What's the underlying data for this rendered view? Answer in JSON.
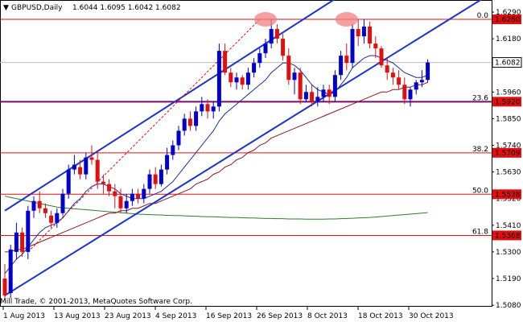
{
  "window": {
    "symbol_label": "GBPUSD,Daily",
    "ohlc_label": "1.6044 1.6095 1.6042 1.6082",
    "copyright": "Mill Trade, © 2001-2013, MetaQuotes Software Corp."
  },
  "chart_data": {
    "type": "candlestick",
    "title": "GBPUSD,Daily",
    "ylim": [
      1.5087,
      1.629
    ],
    "y_ticks": [
      1.629,
      1.618,
      1.607,
      1.596,
      1.585,
      1.574,
      1.563,
      1.552,
      1.541,
      1.53,
      1.519,
      1.508
    ],
    "x_ticks": [
      "1 Aug 2013",
      "13 Aug 2013",
      "23 Aug 2013",
      "4 Sep 2013",
      "16 Sep 2013",
      "26 Sep 2013",
      "8 Oct 2013",
      "18 Oct 2013",
      "30 Oct 2013"
    ],
    "current_price": "1.6082",
    "bull_color": "#0000cc",
    "bear_color": "#e01010",
    "candles": [
      [
        1.519,
        1.525,
        1.51,
        1.512
      ],
      [
        1.513,
        1.533,
        1.511,
        1.531
      ],
      [
        1.53,
        1.542,
        1.527,
        1.538
      ],
      [
        1.538,
        1.54,
        1.528,
        1.53
      ],
      [
        1.53,
        1.549,
        1.527,
        1.547
      ],
      [
        1.547,
        1.553,
        1.544,
        1.551
      ],
      [
        1.551,
        1.555,
        1.546,
        1.548
      ],
      [
        1.548,
        1.55,
        1.544,
        1.546
      ],
      [
        1.545,
        1.547,
        1.54,
        1.542
      ],
      [
        1.542,
        1.548,
        1.54,
        1.546
      ],
      [
        1.546,
        1.556,
        1.545,
        1.554
      ],
      [
        1.554,
        1.566,
        1.552,
        1.564
      ],
      [
        1.564,
        1.57,
        1.562,
        1.566
      ],
      [
        1.565,
        1.568,
        1.56,
        1.562
      ],
      [
        1.562,
        1.571,
        1.56,
        1.569
      ],
      [
        1.569,
        1.574,
        1.566,
        1.568
      ],
      [
        1.568,
        1.572,
        1.556,
        1.559
      ],
      [
        1.559,
        1.562,
        1.554,
        1.558
      ],
      [
        1.558,
        1.56,
        1.553,
        1.555
      ],
      [
        1.555,
        1.558,
        1.548,
        1.553
      ],
      [
        1.553,
        1.556,
        1.546,
        1.548
      ],
      [
        1.548,
        1.554,
        1.546,
        1.551
      ],
      [
        1.551,
        1.556,
        1.549,
        1.554
      ],
      [
        1.554,
        1.556,
        1.55,
        1.552
      ],
      [
        1.552,
        1.558,
        1.55,
        1.556
      ],
      [
        1.556,
        1.564,
        1.554,
        1.562
      ],
      [
        1.562,
        1.565,
        1.556,
        1.558
      ],
      [
        1.558,
        1.566,
        1.557,
        1.564
      ],
      [
        1.564,
        1.573,
        1.562,
        1.57
      ],
      [
        1.57,
        1.576,
        1.568,
        1.574
      ],
      [
        1.574,
        1.582,
        1.572,
        1.58
      ],
      [
        1.58,
        1.587,
        1.578,
        1.585
      ],
      [
        1.585,
        1.588,
        1.58,
        1.582
      ],
      [
        1.582,
        1.59,
        1.58,
        1.588
      ],
      [
        1.588,
        1.594,
        1.586,
        1.591
      ],
      [
        1.591,
        1.593,
        1.585,
        1.588
      ],
      [
        1.588,
        1.592,
        1.585,
        1.59
      ],
      [
        1.59,
        1.616,
        1.588,
        1.613
      ],
      [
        1.613,
        1.616,
        1.603,
        1.604
      ],
      [
        1.604,
        1.606,
        1.598,
        1.6
      ],
      [
        1.6,
        1.604,
        1.597,
        1.602
      ],
      [
        1.602,
        1.603,
        1.597,
        1.599
      ],
      [
        1.599,
        1.606,
        1.597,
        1.604
      ],
      [
        1.604,
        1.61,
        1.602,
        1.608
      ],
      [
        1.608,
        1.614,
        1.606,
        1.612
      ],
      [
        1.612,
        1.618,
        1.61,
        1.616
      ],
      [
        1.616,
        1.626,
        1.614,
        1.622
      ],
      [
        1.622,
        1.624,
        1.616,
        1.618
      ],
      [
        1.618,
        1.62,
        1.609,
        1.611
      ],
      [
        1.611,
        1.614,
        1.599,
        1.601
      ],
      [
        1.601,
        1.606,
        1.595,
        1.604
      ],
      [
        1.604,
        1.606,
        1.591,
        1.593
      ],
      [
        1.593,
        1.599,
        1.592,
        1.596
      ],
      [
        1.596,
        1.599,
        1.59,
        1.592
      ],
      [
        1.592,
        1.598,
        1.59,
        1.594
      ],
      [
        1.594,
        1.599,
        1.592,
        1.597
      ],
      [
        1.597,
        1.599,
        1.591,
        1.594
      ],
      [
        1.594,
        1.605,
        1.592,
        1.603
      ],
      [
        1.603,
        1.613,
        1.601,
        1.611
      ],
      [
        1.611,
        1.616,
        1.605,
        1.608
      ],
      [
        1.608,
        1.624,
        1.606,
        1.622
      ],
      [
        1.622,
        1.626,
        1.615,
        1.619
      ],
      [
        1.619,
        1.626,
        1.616,
        1.623
      ],
      [
        1.623,
        1.625,
        1.614,
        1.616
      ],
      [
        1.616,
        1.619,
        1.61,
        1.614
      ],
      [
        1.614,
        1.615,
        1.606,
        1.607
      ],
      [
        1.607,
        1.61,
        1.601,
        1.604
      ],
      [
        1.604,
        1.606,
        1.599,
        1.602
      ],
      [
        1.602,
        1.605,
        1.597,
        1.599
      ],
      [
        1.599,
        1.602,
        1.591,
        1.593
      ],
      [
        1.593,
        1.598,
        1.59,
        1.597
      ],
      [
        1.597,
        1.601,
        1.595,
        1.6
      ],
      [
        1.6,
        1.605,
        1.598,
        1.601
      ],
      [
        1.601,
        1.6095,
        1.6,
        1.6082
      ]
    ],
    "channel_upper": {
      "x_index": [
        0,
        60
      ],
      "y": [
        1.547,
        1.639
      ]
    },
    "channel_lower": {
      "x_index": [
        0,
        70
      ],
      "y": [
        1.512,
        1.616
      ]
    },
    "dashed_line": {
      "x_index": [
        4,
        44
      ],
      "y": [
        1.53,
        1.626
      ]
    },
    "horizontal_line_1": {
      "value": 1.6082
    },
    "fib_levels": [
      {
        "label": "0.0",
        "value": 1.626,
        "price": "1.6260"
      },
      {
        "label": "23.6",
        "value": 1.592,
        "price": "1.5920"
      },
      {
        "label": "38.2",
        "value": 1.5709,
        "price": "1.5709"
      },
      {
        "label": "50.0",
        "value": 1.5538,
        "price": "1.5538"
      },
      {
        "label": "61.8",
        "value": 1.5368,
        "price": "1.5368"
      }
    ],
    "ma_fast": [
      1.521,
      1.524,
      1.527,
      1.529,
      1.532,
      1.535,
      1.538,
      1.54,
      1.541,
      1.542,
      1.544,
      1.547,
      1.55,
      1.552,
      1.555,
      1.557,
      1.558,
      1.558,
      1.557,
      1.556,
      1.554,
      1.553,
      1.552,
      1.552,
      1.552,
      1.553,
      1.554,
      1.555,
      1.557,
      1.559,
      1.562,
      1.565,
      1.568,
      1.571,
      1.574,
      1.577,
      1.58,
      1.584,
      1.587,
      1.589,
      1.591,
      1.593,
      1.595,
      1.597,
      1.599,
      1.601,
      1.604,
      1.606,
      1.608,
      1.608,
      1.607,
      1.605,
      1.602,
      1.599,
      1.597,
      1.596,
      1.595,
      1.596,
      1.599,
      1.602,
      1.606,
      1.608,
      1.61,
      1.611,
      1.611,
      1.61,
      1.609,
      1.608,
      1.606,
      1.604,
      1.603,
      1.602,
      1.602,
      1.603
    ],
    "ma_mid": [
      1.53,
      1.53,
      1.531,
      1.531,
      1.532,
      1.533,
      1.534,
      1.535,
      1.536,
      1.537,
      1.538,
      1.539,
      1.54,
      1.541,
      1.542,
      1.543,
      1.544,
      1.545,
      1.546,
      1.546,
      1.547,
      1.547,
      1.548,
      1.548,
      1.549,
      1.55,
      1.55,
      1.551,
      1.552,
      1.553,
      1.554,
      1.555,
      1.556,
      1.558,
      1.559,
      1.56,
      1.562,
      1.563,
      1.565,
      1.566,
      1.568,
      1.569,
      1.571,
      1.572,
      1.574,
      1.575,
      1.577,
      1.578,
      1.579,
      1.58,
      1.581,
      1.582,
      1.583,
      1.584,
      1.585,
      1.586,
      1.587,
      1.588,
      1.589,
      1.59,
      1.591,
      1.592,
      1.593,
      1.594,
      1.595,
      1.596,
      1.596,
      1.597,
      1.597,
      1.598,
      1.598,
      1.599,
      1.599,
      1.6
    ],
    "ma_slow": [
      1.553,
      1.5525,
      1.552,
      1.5515,
      1.551,
      1.5505,
      1.55,
      1.5495,
      1.549,
      1.5485,
      1.5482,
      1.548,
      1.5478,
      1.5476,
      1.5474,
      1.5472,
      1.547,
      1.5468,
      1.5466,
      1.5464,
      1.5462,
      1.546,
      1.5458,
      1.5456,
      1.5455,
      1.5454,
      1.5453,
      1.5452,
      1.5451,
      1.545,
      1.545,
      1.5449,
      1.5448,
      1.5447,
      1.5446,
      1.5445,
      1.5445,
      1.5444,
      1.5443,
      1.5442,
      1.5442,
      1.5441,
      1.544,
      1.544,
      1.5439,
      1.5438,
      1.5438,
      1.5437,
      1.5437,
      1.5436,
      1.5436,
      1.5436,
      1.5435,
      1.5435,
      1.5435,
      1.5435,
      1.5436,
      1.5436,
      1.5437,
      1.5438,
      1.5439,
      1.544,
      1.5441,
      1.5442,
      1.5444,
      1.5446,
      1.5448,
      1.545,
      1.5452,
      1.5454,
      1.5456,
      1.5458,
      1.546,
      1.5462
    ],
    "highlight_ovals": [
      {
        "x_index": 45,
        "y": 1.626
      },
      {
        "x_index": 59,
        "y": 1.626
      }
    ]
  }
}
